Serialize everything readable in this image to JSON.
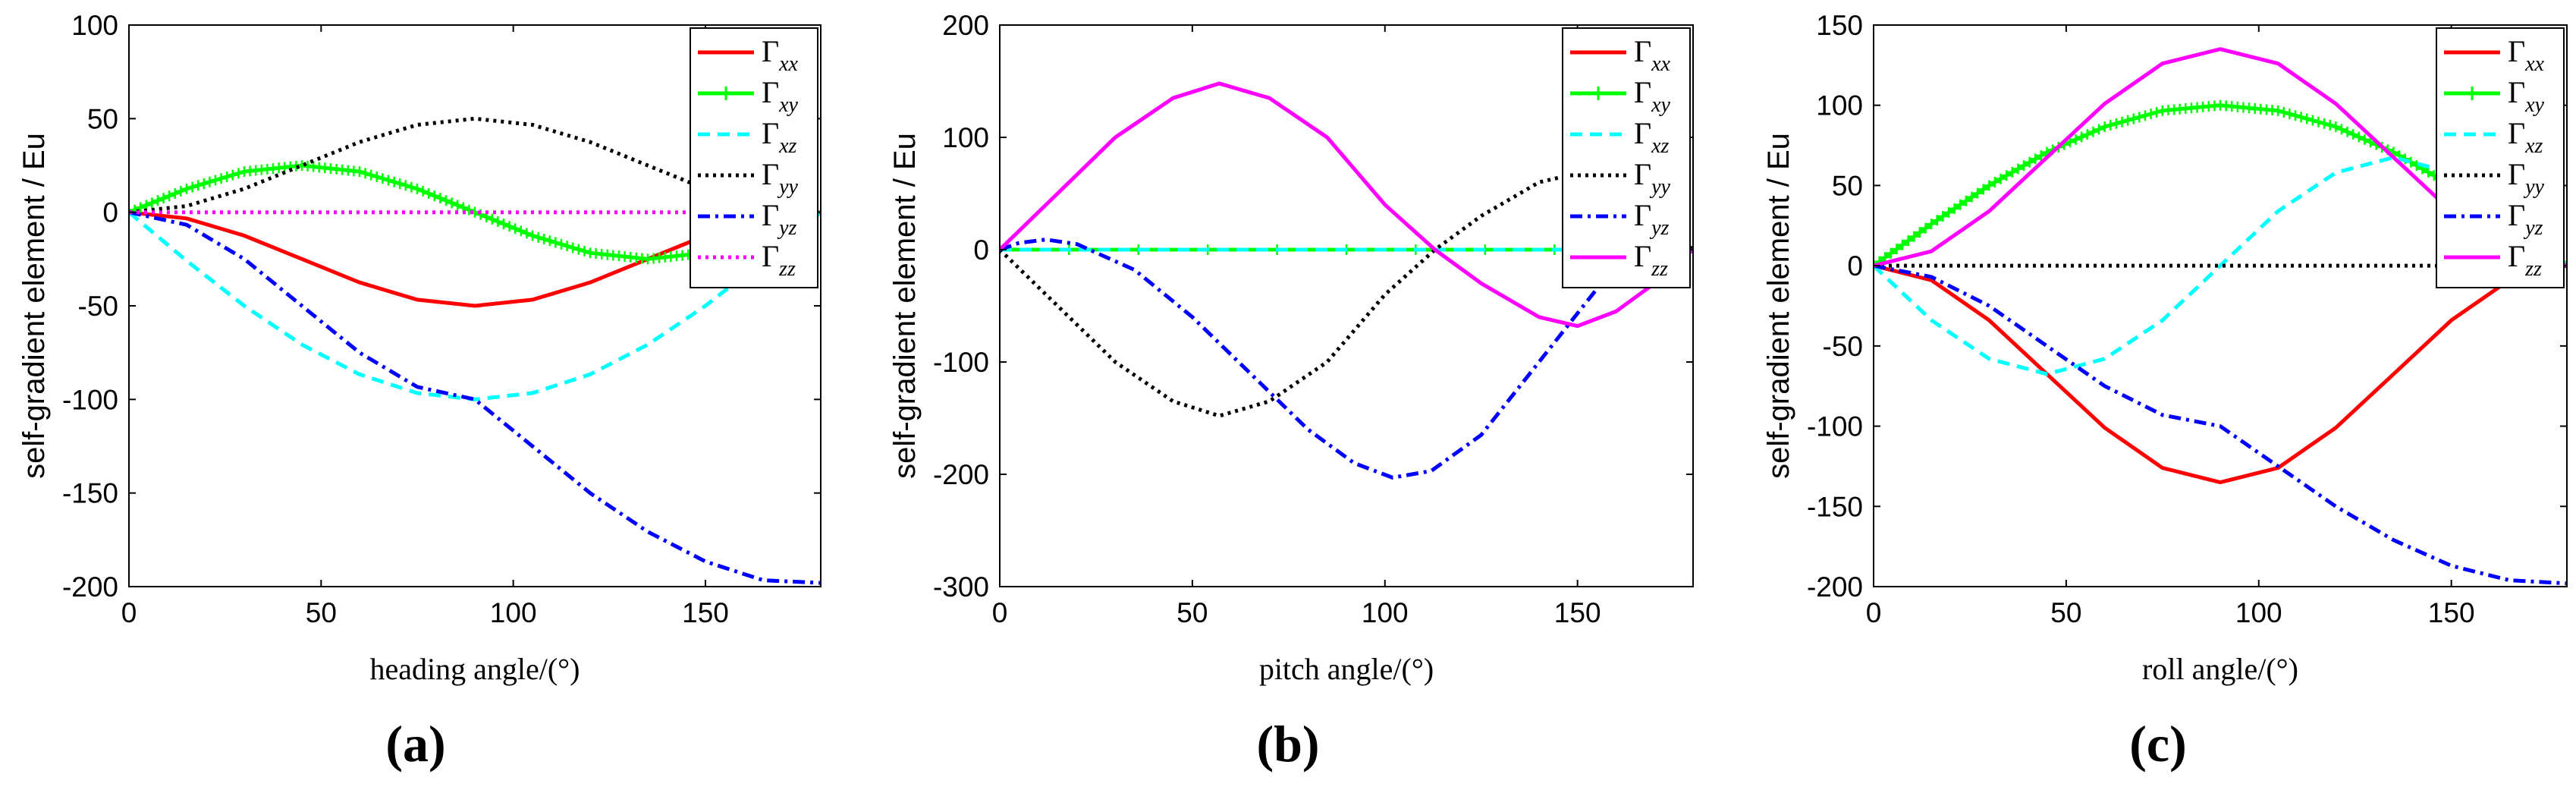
{
  "figure": {
    "panels": [
      {
        "label": "(a)"
      },
      {
        "label": "(b)"
      },
      {
        "label": "(c)"
      }
    ]
  },
  "chart_data": [
    {
      "type": "line",
      "panel_label": "(a)",
      "xlabel": "heading angle/(°)",
      "ylabel": "self-gradient element / Eu",
      "xlim": [
        0,
        180
      ],
      "ylim": [
        -200,
        100
      ],
      "xticks": [
        0,
        50,
        100,
        150
      ],
      "yticks": [
        100,
        50,
        0,
        -50,
        -100,
        -150,
        -200
      ],
      "legend_position": "top-right",
      "series": [
        {
          "name": "Γxx",
          "base": "Γ",
          "sub": "xx",
          "color": "#ff0000",
          "style": "solid",
          "marker": "none",
          "x": [
            0,
            15,
            30,
            45,
            60,
            75,
            90,
            105,
            120,
            135,
            150,
            165,
            180
          ],
          "values": [
            0,
            -3.3,
            -12.5,
            -25,
            -37.5,
            -46.7,
            -50,
            -46.7,
            -37.5,
            -25,
            -12.5,
            -3.3,
            0
          ]
        },
        {
          "name": "Γxy",
          "base": "Γ",
          "sub": "xy",
          "color": "#00ff00",
          "style": "solid",
          "marker": "plus",
          "x": [
            0,
            15,
            30,
            45,
            60,
            75,
            90,
            105,
            120,
            135,
            150,
            165,
            180
          ],
          "values": [
            0,
            12.5,
            21.7,
            25,
            21.7,
            12.5,
            0,
            -12.5,
            -21.7,
            -25,
            -21.7,
            -12.5,
            0
          ]
        },
        {
          "name": "Γxz",
          "base": "Γ",
          "sub": "xz",
          "color": "#00ffff",
          "style": "dashed",
          "marker": "none",
          "x": [
            0,
            15,
            30,
            45,
            60,
            75,
            90,
            105,
            120,
            135,
            150,
            165,
            180
          ],
          "values": [
            0,
            -25.9,
            -50,
            -70.7,
            -86.6,
            -96.6,
            -100,
            -96.6,
            -86.6,
            -70.7,
            -50,
            -25.9,
            0
          ]
        },
        {
          "name": "Γyy",
          "base": "Γ",
          "sub": "yy",
          "color": "#000000",
          "style": "dotted",
          "marker": "none",
          "x": [
            0,
            15,
            30,
            45,
            60,
            75,
            90,
            105,
            120,
            135,
            150,
            165,
            180
          ],
          "values": [
            0,
            3.3,
            12.5,
            25,
            37.5,
            46.7,
            50,
            46.7,
            37.5,
            25,
            12.5,
            3.3,
            0
          ]
        },
        {
          "name": "Γyz",
          "base": "Γ",
          "sub": "yz",
          "color": "#0000ff",
          "style": "dashdot",
          "marker": "none",
          "x": [
            0,
            15,
            30,
            45,
            60,
            75,
            90,
            105,
            120,
            135,
            150,
            165,
            180
          ],
          "values": [
            0,
            -6.7,
            -25,
            -50,
            -75,
            -93.3,
            -100,
            -125,
            -150,
            -170.7,
            -186.6,
            -196.6,
            -198
          ]
        },
        {
          "name": "Γzz",
          "base": "Γ",
          "sub": "zz",
          "color": "#ff00ff",
          "style": "dotted",
          "marker": "none",
          "x": [
            0,
            180
          ],
          "values": [
            0,
            0
          ]
        }
      ]
    },
    {
      "type": "line",
      "panel_label": "(b)",
      "xlabel": "pitch angle/(°)",
      "ylabel": "self-gradient element / Eu",
      "xlim": [
        0,
        180
      ],
      "ylim": [
        -300,
        200
      ],
      "xticks": [
        0,
        50,
        100,
        150
      ],
      "yticks": [
        200,
        100,
        0,
        -100,
        -200,
        -300
      ],
      "legend_position": "top-right",
      "series": [
        {
          "name": "Γxx",
          "base": "Γ",
          "sub": "xx",
          "color": "#ff0000",
          "style": "solid",
          "marker": "none",
          "x": [
            0,
            180
          ],
          "values": [
            0,
            0
          ]
        },
        {
          "name": "Γxy",
          "base": "Γ",
          "sub": "xy",
          "color": "#00ff00",
          "style": "solid",
          "marker": "plus",
          "x": [
            0,
            180
          ],
          "values": [
            0,
            0
          ]
        },
        {
          "name": "Γxz",
          "base": "Γ",
          "sub": "xz",
          "color": "#00ffff",
          "style": "dashed",
          "marker": "none",
          "x": [
            0,
            180
          ],
          "values": [
            0,
            0
          ]
        },
        {
          "name": "Γyy",
          "base": "Γ",
          "sub": "yy",
          "color": "#000000",
          "style": "dotted",
          "marker": "none",
          "x": [
            0,
            15,
            30,
            45,
            57,
            70,
            85,
            100,
            113,
            125,
            140,
            150,
            160,
            170,
            180
          ],
          "values": [
            0,
            -50,
            -100,
            -135,
            -148,
            -135,
            -100,
            -40,
            0,
            30,
            60,
            68,
            55,
            30,
            0
          ]
        },
        {
          "name": "Γyz",
          "base": "Γ",
          "sub": "yz",
          "color": "#0000ff",
          "style": "dashdot",
          "marker": "none",
          "x": [
            0,
            5,
            12,
            20,
            35,
            50,
            65,
            80,
            92,
            102,
            112,
            125,
            140,
            155,
            165,
            172,
            180
          ],
          "values": [
            0,
            6,
            9,
            5,
            -18,
            -60,
            -110,
            -160,
            -190,
            -203,
            -197,
            -165,
            -100,
            -35,
            -5,
            5,
            0
          ]
        },
        {
          "name": "Γzz",
          "base": "Γ",
          "sub": "zz",
          "color": "#ff00ff",
          "style": "solid",
          "marker": "none",
          "x": [
            0,
            15,
            30,
            45,
            57,
            70,
            85,
            100,
            113,
            125,
            140,
            150,
            160,
            170,
            180
          ],
          "values": [
            0,
            50,
            100,
            135,
            148,
            135,
            100,
            40,
            0,
            -30,
            -60,
            -68,
            -55,
            -30,
            0
          ]
        }
      ]
    },
    {
      "type": "line",
      "panel_label": "(c)",
      "xlabel": "roll angle/(°)",
      "ylabel": "self-gradient element / Eu",
      "xlim": [
        0,
        180
      ],
      "ylim": [
        -200,
        150
      ],
      "xticks": [
        0,
        50,
        100,
        150
      ],
      "yticks": [
        150,
        100,
        50,
        0,
        -50,
        -100,
        -150,
        -200
      ],
      "legend_position": "top-right",
      "series": [
        {
          "name": "Γxx",
          "base": "Γ",
          "sub": "xx",
          "color": "#ff0000",
          "style": "solid",
          "marker": "none",
          "x": [
            0,
            15,
            30,
            45,
            60,
            75,
            90,
            105,
            120,
            135,
            150,
            165,
            180
          ],
          "values": [
            0,
            -9,
            -34,
            -67.5,
            -101,
            -126,
            -135,
            -126,
            -101,
            -67.5,
            -34,
            -9,
            0
          ]
        },
        {
          "name": "Γxy",
          "base": "Γ",
          "sub": "xy",
          "color": "#00ff00",
          "style": "solid",
          "marker": "plus",
          "x": [
            0,
            15,
            30,
            45,
            60,
            75,
            90,
            105,
            120,
            135,
            150,
            165,
            180
          ],
          "values": [
            0,
            26,
            50,
            70.7,
            86.6,
            96.6,
            100,
            96.6,
            86.6,
            70.7,
            50,
            26,
            0
          ]
        },
        {
          "name": "Γxz",
          "base": "Γ",
          "sub": "xz",
          "color": "#00ffff",
          "style": "dashed",
          "marker": "none",
          "x": [
            0,
            15,
            30,
            45,
            60,
            75,
            90,
            105,
            120,
            135,
            150,
            165,
            180
          ],
          "values": [
            0,
            -34,
            -58,
            -67.5,
            -58,
            -34,
            0,
            34,
            58,
            67.5,
            58,
            34,
            0
          ]
        },
        {
          "name": "Γyy",
          "base": "Γ",
          "sub": "yy",
          "color": "#000000",
          "style": "dotted",
          "marker": "none",
          "x": [
            0,
            180
          ],
          "values": [
            0,
            0
          ]
        },
        {
          "name": "Γyz",
          "base": "Γ",
          "sub": "yz",
          "color": "#0000ff",
          "style": "dashdot",
          "marker": "none",
          "x": [
            0,
            15,
            30,
            45,
            60,
            75,
            90,
            105,
            120,
            135,
            150,
            165,
            180
          ],
          "values": [
            0,
            -7,
            -25,
            -50,
            -75,
            -93,
            -100,
            -125,
            -150,
            -171,
            -187,
            -196,
            -198
          ]
        },
        {
          "name": "Γzz",
          "base": "Γ",
          "sub": "zz",
          "color": "#ff00ff",
          "style": "solid",
          "marker": "none",
          "x": [
            0,
            15,
            30,
            45,
            60,
            75,
            90,
            105,
            120,
            135,
            150,
            165,
            180
          ],
          "values": [
            0,
            9,
            34,
            67.5,
            101,
            126,
            135,
            126,
            101,
            67.5,
            34,
            9,
            0
          ]
        }
      ]
    }
  ]
}
